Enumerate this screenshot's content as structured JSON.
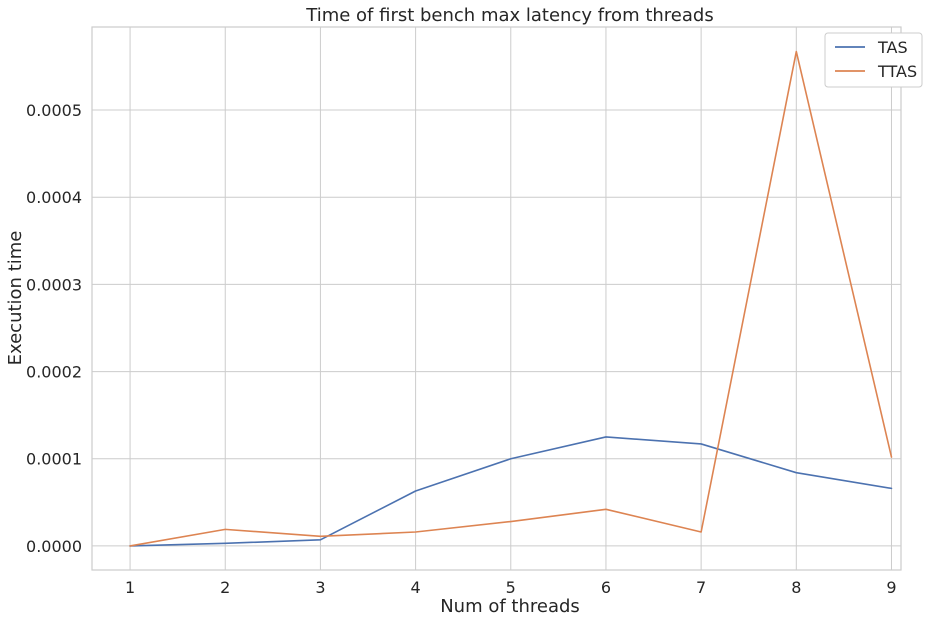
{
  "chart_data": {
    "type": "line",
    "title": "Time of first bench max latency from threads",
    "xlabel": "Num of threads",
    "ylabel": "Execution time",
    "x": [
      1,
      2,
      3,
      4,
      5,
      6,
      7,
      8,
      9
    ],
    "x_ticks": [
      "1",
      "2",
      "3",
      "4",
      "5",
      "6",
      "7",
      "8",
      "9"
    ],
    "xlim": [
      0.6,
      9.1
    ],
    "y_ticks": [
      "0.0000",
      "0.0001",
      "0.0002",
      "0.0003",
      "0.0004",
      "0.0005"
    ],
    "y_tick_values": [
      0.0,
      0.0001,
      0.0002,
      0.0003,
      0.0004,
      0.0005
    ],
    "ylim": [
      -2.76e-05,
      0.0005952
    ],
    "grid": true,
    "legend_position": "top-right",
    "series": [
      {
        "name": "TAS",
        "color": "#4c72b0",
        "values": [
          0.0,
          3e-06,
          7e-06,
          6.3e-05,
          0.0001,
          0.000125,
          0.000117,
          8.4e-05,
          6.6e-05
        ]
      },
      {
        "name": "TTAS",
        "color": "#dd8452",
        "values": [
          0.0,
          1.9e-05,
          1.1e-05,
          1.6e-05,
          2.8e-05,
          4.2e-05,
          1.6e-05,
          0.000567,
          0.000102
        ]
      }
    ]
  }
}
